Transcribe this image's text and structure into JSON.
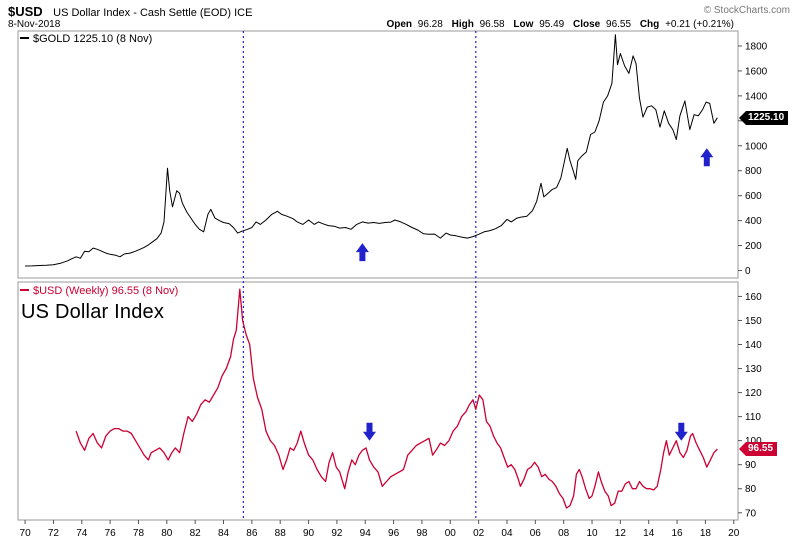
{
  "header": {
    "symbol": "$USD",
    "title": "US Dollar Index - Cash Settle (EOD) ICE",
    "copyright": "© StockCharts.com",
    "date": "8-Nov-2018",
    "quote": {
      "open_label": "Open",
      "open_value": "96.28",
      "high_label": "High",
      "high_value": "96.58",
      "low_label": "Low",
      "low_value": "95.49",
      "close_label": "Close",
      "close_value": "96.55",
      "chg_label": "Chg",
      "chg_value": "+0.21 (+0.21%)"
    }
  },
  "colors": {
    "gold_line": "#000000",
    "usd_line": "#cc0033",
    "annotation_blue": "#2222cc",
    "panel_border": "#999999",
    "axis_text": "#000000",
    "copyright_gray": "#777777"
  },
  "x_axis": {
    "tick_labels": [
      "70",
      "72",
      "74",
      "76",
      "78",
      "80",
      "82",
      "84",
      "86",
      "88",
      "90",
      "92",
      "94",
      "96",
      "98",
      "00",
      "02",
      "04",
      "06",
      "08",
      "10",
      "12",
      "14",
      "16",
      "18",
      "20"
    ],
    "start_year": 1970,
    "step": 2
  },
  "annotations": {
    "vlines_years": [
      1985.4,
      2001.8
    ],
    "color": "#2222cc"
  },
  "chart_data": [
    {
      "type": "line",
      "name": "$GOLD",
      "legend": "$GOLD 1225.10 (8 Nov)",
      "price_tag": "1225.10",
      "last_value": 1225.1,
      "color": "#000000",
      "ylim": [
        0,
        1800
      ],
      "yticks": [
        0,
        200,
        400,
        600,
        800,
        1000,
        1200,
        1400,
        1600,
        1800
      ],
      "x": [
        1970,
        1970.5,
        1971,
        1971.5,
        1972,
        1972.5,
        1973,
        1973.3,
        1973.6,
        1973.9,
        1974.2,
        1974.5,
        1974.8,
        1975.1,
        1975.4,
        1975.7,
        1976.0,
        1976.4,
        1976.7,
        1977.0,
        1977.4,
        1977.8,
        1978.1,
        1978.4,
        1978.7,
        1979.0,
        1979.3,
        1979.6,
        1979.8,
        1980.05,
        1980.2,
        1980.4,
        1980.7,
        1980.9,
        1981.1,
        1981.4,
        1981.7,
        1982.0,
        1982.3,
        1982.6,
        1982.9,
        1983.1,
        1983.4,
        1983.7,
        1984.0,
        1984.4,
        1984.7,
        1985.0,
        1985.3,
        1985.7,
        1986.0,
        1986.3,
        1986.6,
        1987.0,
        1987.4,
        1987.8,
        1988.1,
        1988.5,
        1988.9,
        1989.2,
        1989.6,
        1990.0,
        1990.4,
        1990.7,
        1991.0,
        1991.4,
        1991.8,
        1992.2,
        1992.6,
        1993.0,
        1993.4,
        1993.8,
        1994.2,
        1994.6,
        1995.0,
        1995.4,
        1995.8,
        1996.1,
        1996.5,
        1996.9,
        1997.3,
        1997.7,
        1998.1,
        1998.5,
        1998.9,
        1999.3,
        1999.7,
        2000.0,
        2000.4,
        2000.8,
        2001.2,
        2001.6,
        2002.0,
        2002.4,
        2002.8,
        2003.2,
        2003.6,
        2004.0,
        2004.3,
        2004.7,
        2005.0,
        2005.4,
        2005.8,
        2006.1,
        2006.4,
        2006.6,
        2006.9,
        2007.2,
        2007.5,
        2007.8,
        2008.1,
        2008.25,
        2008.45,
        2008.7,
        2008.85,
        2009.0,
        2009.3,
        2009.6,
        2009.9,
        2010.2,
        2010.5,
        2010.8,
        2011.1,
        2011.4,
        2011.65,
        2011.8,
        2012.0,
        2012.3,
        2012.6,
        2012.9,
        2013.1,
        2013.35,
        2013.6,
        2013.9,
        2014.2,
        2014.5,
        2014.8,
        2015.1,
        2015.4,
        2015.7,
        2015.95,
        2016.2,
        2016.55,
        2016.9,
        2017.2,
        2017.5,
        2017.8,
        2018.05,
        2018.3,
        2018.6,
        2018.85
      ],
      "values": [
        36,
        37,
        40,
        42,
        46,
        58,
        78,
        95,
        110,
        98,
        155,
        150,
        180,
        170,
        155,
        140,
        130,
        122,
        110,
        132,
        140,
        155,
        170,
        185,
        205,
        230,
        255,
        300,
        390,
        820,
        640,
        510,
        640,
        620,
        540,
        470,
        420,
        370,
        330,
        310,
        450,
        490,
        420,
        400,
        385,
        375,
        345,
        300,
        315,
        330,
        345,
        390,
        370,
        405,
        450,
        475,
        450,
        435,
        415,
        390,
        370,
        405,
        370,
        390,
        375,
        360,
        355,
        340,
        345,
        330,
        370,
        390,
        380,
        385,
        378,
        385,
        388,
        405,
        390,
        370,
        345,
        325,
        295,
        290,
        292,
        260,
        300,
        285,
        278,
        268,
        260,
        272,
        290,
        310,
        320,
        335,
        360,
        410,
        390,
        420,
        428,
        435,
        480,
        555,
        700,
        590,
        620,
        650,
        665,
        740,
        900,
        980,
        880,
        790,
        730,
        880,
        920,
        950,
        1090,
        1110,
        1200,
        1350,
        1400,
        1500,
        1890,
        1650,
        1740,
        1640,
        1580,
        1720,
        1660,
        1380,
        1230,
        1310,
        1320,
        1290,
        1150,
        1280,
        1180,
        1130,
        1050,
        1240,
        1360,
        1130,
        1250,
        1240,
        1290,
        1350,
        1340,
        1180,
        1225.1
      ],
      "arrows": [
        {
          "direction": "up",
          "x": 1993.8,
          "value": 220
        },
        {
          "direction": "up",
          "x": 2018.1,
          "value": 980
        }
      ]
    },
    {
      "type": "line",
      "name": "$USD",
      "legend": "$USD (Weekly) 96.55 (8 Nov)",
      "title": "US Dollar Index",
      "price_tag": "96.55",
      "last_value": 96.55,
      "color": "#cc0033",
      "ylim": [
        70,
        160
      ],
      "yticks": [
        70,
        80,
        90,
        100,
        110,
        120,
        130,
        140,
        150,
        160
      ],
      "x": [
        1973.6,
        1973.9,
        1974.2,
        1974.5,
        1974.8,
        1975.1,
        1975.4,
        1975.7,
        1976.0,
        1976.3,
        1976.6,
        1976.9,
        1977.2,
        1977.5,
        1977.8,
        1978.1,
        1978.4,
        1978.7,
        1978.9,
        1979.2,
        1979.5,
        1979.8,
        1980.1,
        1980.35,
        1980.6,
        1980.9,
        1981.2,
        1981.5,
        1981.8,
        1982.1,
        1982.4,
        1982.7,
        1983.0,
        1983.3,
        1983.6,
        1983.9,
        1984.2,
        1984.5,
        1984.7,
        1984.9,
        1985.15,
        1985.35,
        1985.6,
        1985.85,
        1986.1,
        1986.4,
        1986.7,
        1987.0,
        1987.3,
        1987.6,
        1987.9,
        1988.2,
        1988.45,
        1988.7,
        1988.95,
        1989.2,
        1989.45,
        1989.7,
        1990.0,
        1990.3,
        1990.6,
        1990.9,
        1991.2,
        1991.45,
        1991.7,
        1991.95,
        1992.2,
        1992.55,
        1992.8,
        1993.05,
        1993.3,
        1993.55,
        1993.8,
        1994.05,
        1994.3,
        1994.6,
        1994.9,
        1995.2,
        1995.5,
        1995.8,
        1996.1,
        1996.4,
        1996.7,
        1997.0,
        1997.3,
        1997.6,
        1997.9,
        1998.2,
        1998.5,
        1998.75,
        1999.0,
        1999.3,
        1999.6,
        1999.9,
        2000.2,
        2000.5,
        2000.8,
        2001.1,
        2001.35,
        2001.6,
        2001.8,
        2002.05,
        2002.3,
        2002.55,
        2002.8,
        2003.05,
        2003.3,
        2003.55,
        2003.8,
        2004.05,
        2004.3,
        2004.55,
        2004.8,
        2004.95,
        2005.2,
        2005.45,
        2005.7,
        2005.95,
        2006.2,
        2006.45,
        2006.7,
        2006.95,
        2007.2,
        2007.45,
        2007.7,
        2007.95,
        2008.2,
        2008.45,
        2008.7,
        2008.9,
        2009.1,
        2009.3,
        2009.55,
        2009.8,
        2010.0,
        2010.2,
        2010.45,
        2010.65,
        2010.9,
        2011.15,
        2011.35,
        2011.6,
        2011.85,
        2012.1,
        2012.35,
        2012.6,
        2012.85,
        2013.1,
        2013.35,
        2013.6,
        2013.85,
        2014.1,
        2014.35,
        2014.6,
        2014.85,
        2015.05,
        2015.25,
        2015.45,
        2015.7,
        2015.95,
        2016.2,
        2016.45,
        2016.7,
        2016.95,
        2017.1,
        2017.35,
        2017.6,
        2017.85,
        2018.1,
        2018.35,
        2018.6,
        2018.85
      ],
      "values": [
        104,
        99,
        96,
        101,
        103,
        99,
        97,
        102,
        104,
        105,
        105,
        104,
        104,
        103,
        100,
        97,
        94,
        92,
        95,
        96,
        97,
        95,
        92,
        95,
        97,
        95,
        103,
        110,
        108,
        111,
        115,
        117,
        116,
        119,
        122,
        127,
        130,
        135,
        142,
        146,
        163,
        150,
        144,
        140,
        126,
        118,
        113,
        104,
        100,
        98,
        94,
        88,
        92,
        97,
        96,
        99,
        104,
        99,
        94,
        92,
        88,
        85,
        83,
        91,
        95,
        89,
        87,
        80,
        87,
        92,
        90,
        94,
        96,
        97,
        92,
        89,
        87,
        81,
        83,
        85,
        86,
        87,
        88,
        94,
        96,
        98,
        99,
        100,
        101,
        94,
        96,
        99,
        98,
        100,
        104,
        106,
        110,
        112,
        115,
        117,
        113,
        119,
        117,
        108,
        106,
        102,
        99,
        97,
        93,
        89,
        90,
        88,
        84,
        81,
        84,
        88,
        89,
        91,
        89,
        85,
        86,
        84,
        83,
        81,
        78,
        76,
        72,
        73,
        77,
        86,
        88,
        85,
        80,
        76,
        77,
        81,
        87,
        83,
        79,
        77,
        73,
        74,
        79,
        79,
        82,
        83,
        80,
        80,
        83,
        81,
        80,
        80,
        79.5,
        81,
        88,
        95,
        100,
        94,
        97,
        100,
        95,
        93,
        96,
        102,
        103,
        99,
        96,
        93,
        89,
        92,
        95,
        96.55
      ],
      "arrows": [
        {
          "direction": "down",
          "x": 1994.3,
          "value": 100
        },
        {
          "direction": "down",
          "x": 2016.3,
          "value": 100
        }
      ]
    }
  ]
}
